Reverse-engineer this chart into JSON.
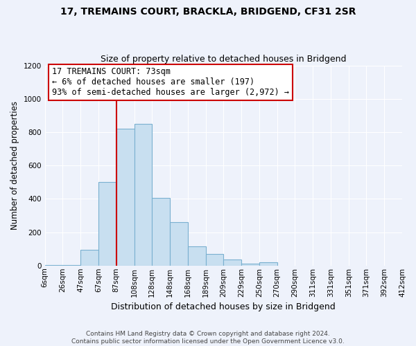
{
  "title1": "17, TREMAINS COURT, BRACKLA, BRIDGEND, CF31 2SR",
  "title2": "Size of property relative to detached houses in Bridgend",
  "xlabel": "Distribution of detached houses by size in Bridgend",
  "ylabel": "Number of detached properties",
  "bin_labels": [
    "6sqm",
    "26sqm",
    "47sqm",
    "67sqm",
    "87sqm",
    "108sqm",
    "128sqm",
    "148sqm",
    "168sqm",
    "189sqm",
    "209sqm",
    "229sqm",
    "250sqm",
    "270sqm",
    "290sqm",
    "311sqm",
    "331sqm",
    "351sqm",
    "371sqm",
    "392sqm",
    "412sqm"
  ],
  "bar_values": [
    5,
    5,
    95,
    500,
    820,
    850,
    405,
    260,
    115,
    70,
    35,
    10,
    20,
    0,
    0,
    0,
    0,
    0,
    0,
    0
  ],
  "bar_color": "#c8dff0",
  "bar_edge_color": "#7ab0d0",
  "vline_x_index": 3,
  "vline_color": "#cc0000",
  "annotation_title": "17 TREMAINS COURT: 73sqm",
  "annotation_line1": "← 6% of detached houses are smaller (197)",
  "annotation_line2": "93% of semi-detached houses are larger (2,972) →",
  "annotation_box_color": "#ffffff",
  "annotation_box_edge": "#cc0000",
  "ylim": [
    0,
    1200
  ],
  "yticks": [
    0,
    200,
    400,
    600,
    800,
    1000,
    1200
  ],
  "footer1": "Contains HM Land Registry data © Crown copyright and database right 2024.",
  "footer2": "Contains public sector information licensed under the Open Government Licence v3.0.",
  "bg_color": "#eef2fb",
  "grid_color": "#ffffff",
  "title1_fontsize": 10,
  "title2_fontsize": 9,
  "ylabel_fontsize": 8.5,
  "xlabel_fontsize": 9,
  "tick_fontsize": 7.5,
  "annotation_fontsize": 8.5,
  "footer_fontsize": 6.5
}
